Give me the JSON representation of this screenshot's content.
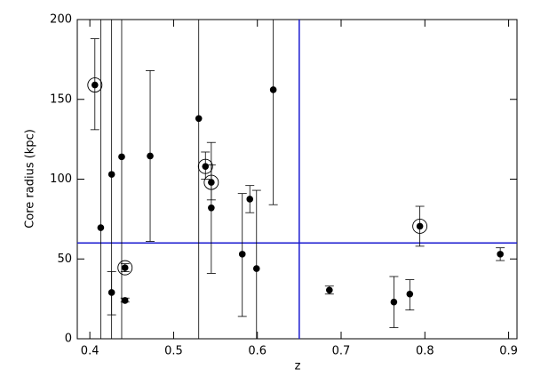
{
  "chart_data": {
    "type": "scatter",
    "xlabel": "z",
    "ylabel": "Core radius (kpc)",
    "xlim": [
      0.385,
      0.91
    ],
    "ylim": [
      0,
      200
    ],
    "xticks": [
      0.4,
      0.5,
      0.6,
      0.7,
      0.8,
      0.9
    ],
    "yticks": [
      0,
      50,
      100,
      150,
      200
    ],
    "hline": 60,
    "vline": 0.65,
    "ref_color": "#1a1ad0",
    "color": "#000000",
    "x": [
      0.406,
      0.413,
      0.426,
      0.426,
      0.438,
      0.442,
      0.442,
      0.472,
      0.53,
      0.538,
      0.545,
      0.545,
      0.582,
      0.591,
      0.599,
      0.619,
      0.686,
      0.763,
      0.782,
      0.794,
      0.89
    ],
    "y": [
      159,
      69.6,
      29,
      103,
      114,
      44.5,
      24,
      114.5,
      138,
      108,
      98,
      82,
      53,
      87.5,
      44,
      156,
      30.5,
      23,
      28,
      70.5,
      53
    ],
    "y_low": [
      131,
      0,
      15,
      0,
      0,
      42,
      23,
      61,
      0,
      100,
      87,
      41,
      14,
      79,
      0,
      84,
      28,
      7,
      18,
      58,
      49
    ],
    "y_high": [
      188,
      250,
      42,
      250,
      250,
      47,
      25.5,
      168,
      250,
      117,
      109,
      123,
      91,
      96,
      93,
      250,
      33,
      39,
      37,
      83,
      57
    ],
    "circled": [
      true,
      false,
      false,
      false,
      false,
      true,
      false,
      false,
      false,
      true,
      true,
      false,
      false,
      false,
      false,
      false,
      false,
      false,
      false,
      true,
      false
    ]
  }
}
